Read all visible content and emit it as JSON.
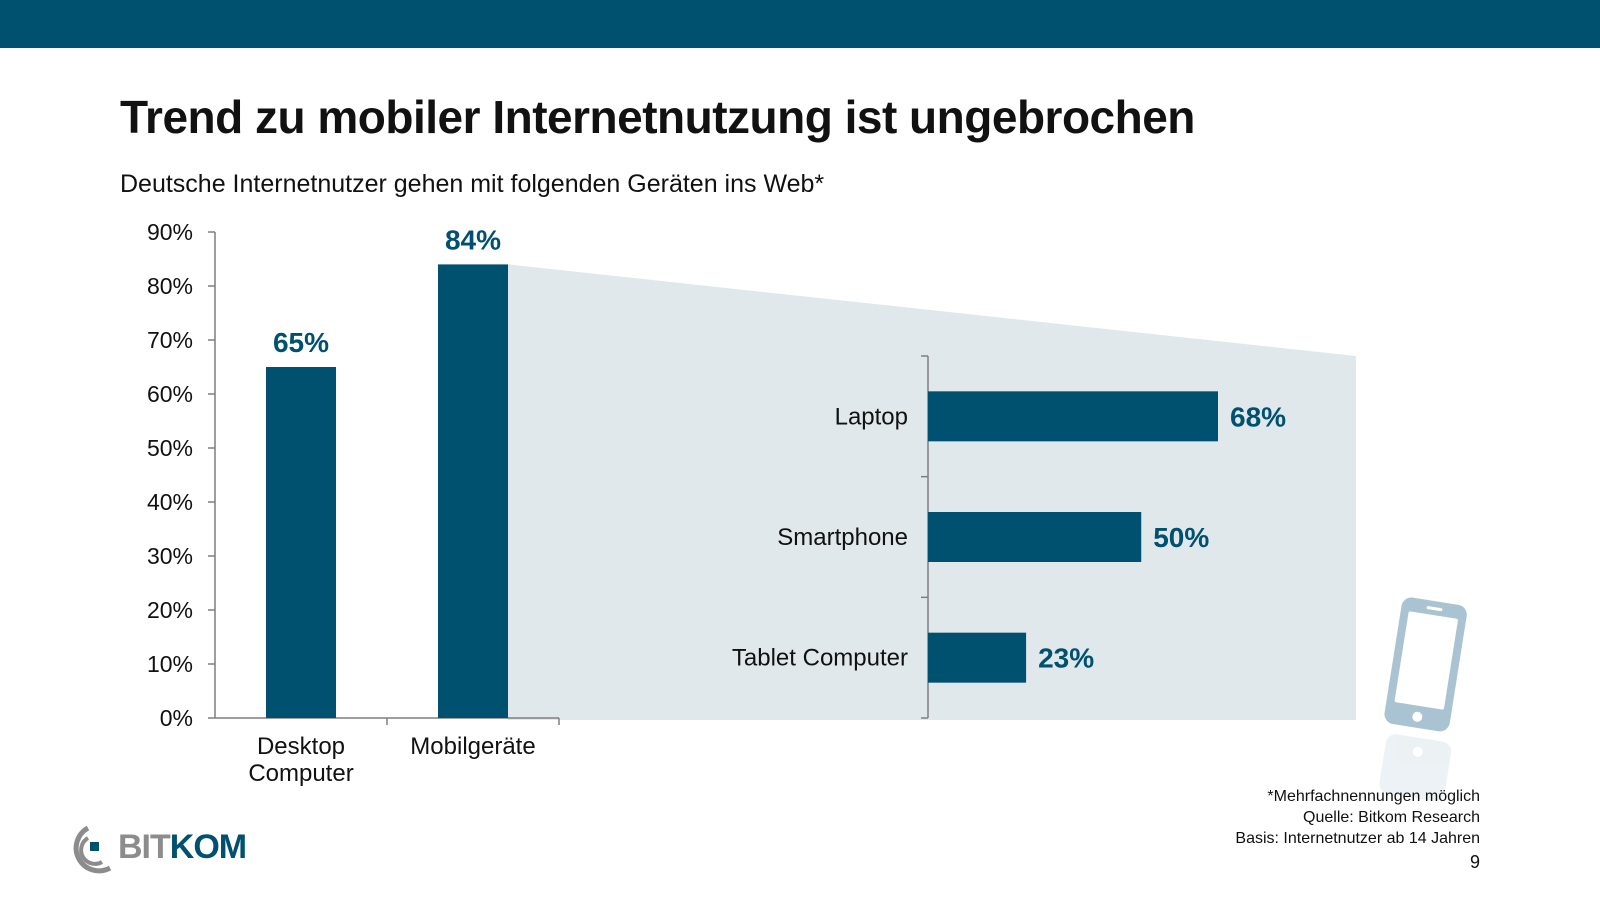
{
  "header": {
    "title": "Trend zu mobiler Internetnutzung ist ungebrochen",
    "subtitle": "Deutsche Internetnutzer gehen mit folgenden Geräten ins Web*"
  },
  "colors": {
    "bar": "#00506f",
    "band": "#e0e8ec",
    "axis": "#7f7f7f",
    "label_highlight": "#00506f"
  },
  "chart_data": [
    {
      "type": "bar",
      "orientation": "vertical",
      "categories": [
        "Desktop Computer",
        "Mobilgeräte"
      ],
      "category_lines": [
        [
          "Desktop",
          "Computer"
        ],
        [
          "Mobilgeräte"
        ]
      ],
      "values": [
        65,
        84
      ],
      "value_labels": [
        "65%",
        "84%"
      ],
      "ylim": [
        0,
        90
      ],
      "yticks": [
        0,
        10,
        20,
        30,
        40,
        50,
        60,
        70,
        80,
        90
      ],
      "ytick_labels": [
        "0%",
        "10%",
        "20%",
        "30%",
        "40%",
        "50%",
        "60%",
        "70%",
        "80%",
        "90%"
      ],
      "grid": false
    },
    {
      "type": "bar",
      "orientation": "horizontal",
      "categories": [
        "Laptop",
        "Smartphone",
        "Tablet Computer"
      ],
      "values": [
        68,
        50,
        23
      ],
      "value_labels": [
        "68%",
        "50%",
        "23%"
      ],
      "grid": false
    }
  ],
  "footer": {
    "notes": [
      "*Mehrfachnennungen möglich",
      "Quelle: Bitkom Research",
      "Basis: Internetnutzer ab 14 Jahren"
    ],
    "page_number": "9"
  },
  "logo": {
    "text_left": "BIT",
    "text_right": "KOM",
    "icon": "bitkom-logo-icon"
  },
  "decoration": {
    "icon": "smartphone-icon"
  }
}
